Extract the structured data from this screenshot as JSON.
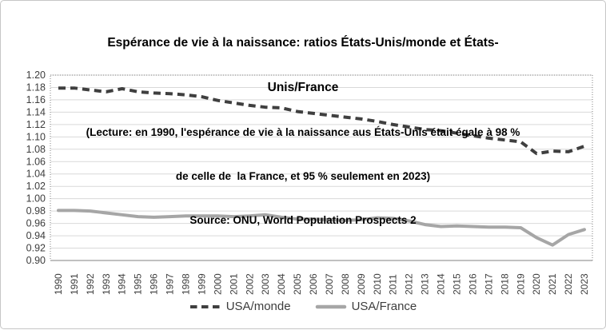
{
  "title": {
    "line1": "Espérance de vie à la naissance: ratios États-Unis/monde et États-",
    "line2": "Unis/France",
    "note1": "(Lecture: en 1990, l'espérance de vie à la naissance aus États-Unis était égale à 98 %",
    "note2": "de celle de  la France, et 95 % seulement en 2023)",
    "source": "Source: ONU, World Population Prospects 2"
  },
  "colors": {
    "usa_monde": "#3f3f3f",
    "usa_france": "#a6a6a6",
    "gridline": "#d9d9d9",
    "plot_border": "#808080",
    "axis_line": "#9a9a9a",
    "axis_text": "#3d3d3d"
  },
  "chart_data": {
    "type": "line",
    "title": "Espérance de vie à la naissance: ratios États-Unis/monde et États-Unis/France",
    "x": [
      1990,
      1991,
      1992,
      1993,
      1994,
      1995,
      1996,
      1997,
      1998,
      1999,
      2000,
      2001,
      2002,
      2003,
      2004,
      2005,
      2006,
      2007,
      2008,
      2009,
      2010,
      2011,
      2012,
      2013,
      2014,
      2015,
      2016,
      2017,
      2018,
      2019,
      2020,
      2021,
      2022,
      2023
    ],
    "series": [
      {
        "name": "USA/monde",
        "color": "#3f3f3f",
        "style": "dashed",
        "values": [
          1.179,
          1.179,
          1.176,
          1.173,
          1.178,
          1.173,
          1.171,
          1.17,
          1.168,
          1.165,
          1.159,
          1.155,
          1.151,
          1.148,
          1.147,
          1.141,
          1.138,
          1.135,
          1.132,
          1.129,
          1.125,
          1.12,
          1.116,
          1.112,
          1.11,
          1.106,
          1.102,
          1.098,
          1.095,
          1.092,
          1.073,
          1.077,
          1.076,
          1.085
        ]
      },
      {
        "name": "USA/France",
        "color": "#a6a6a6",
        "style": "solid",
        "values": [
          0.981,
          0.981,
          0.98,
          0.977,
          0.974,
          0.971,
          0.97,
          0.971,
          0.972,
          0.972,
          0.972,
          0.971,
          0.972,
          0.974,
          0.97,
          0.967,
          0.967,
          0.966,
          0.965,
          0.966,
          0.969,
          0.968,
          0.964,
          0.958,
          0.955,
          0.956,
          0.955,
          0.954,
          0.954,
          0.953,
          0.937,
          0.925,
          0.942,
          0.95
        ]
      }
    ],
    "ylim": [
      0.9,
      1.2
    ],
    "ytick_step": 0.02,
    "ytick_format": "0.00",
    "grid": "horizontal",
    "legend_position": "bottom"
  }
}
